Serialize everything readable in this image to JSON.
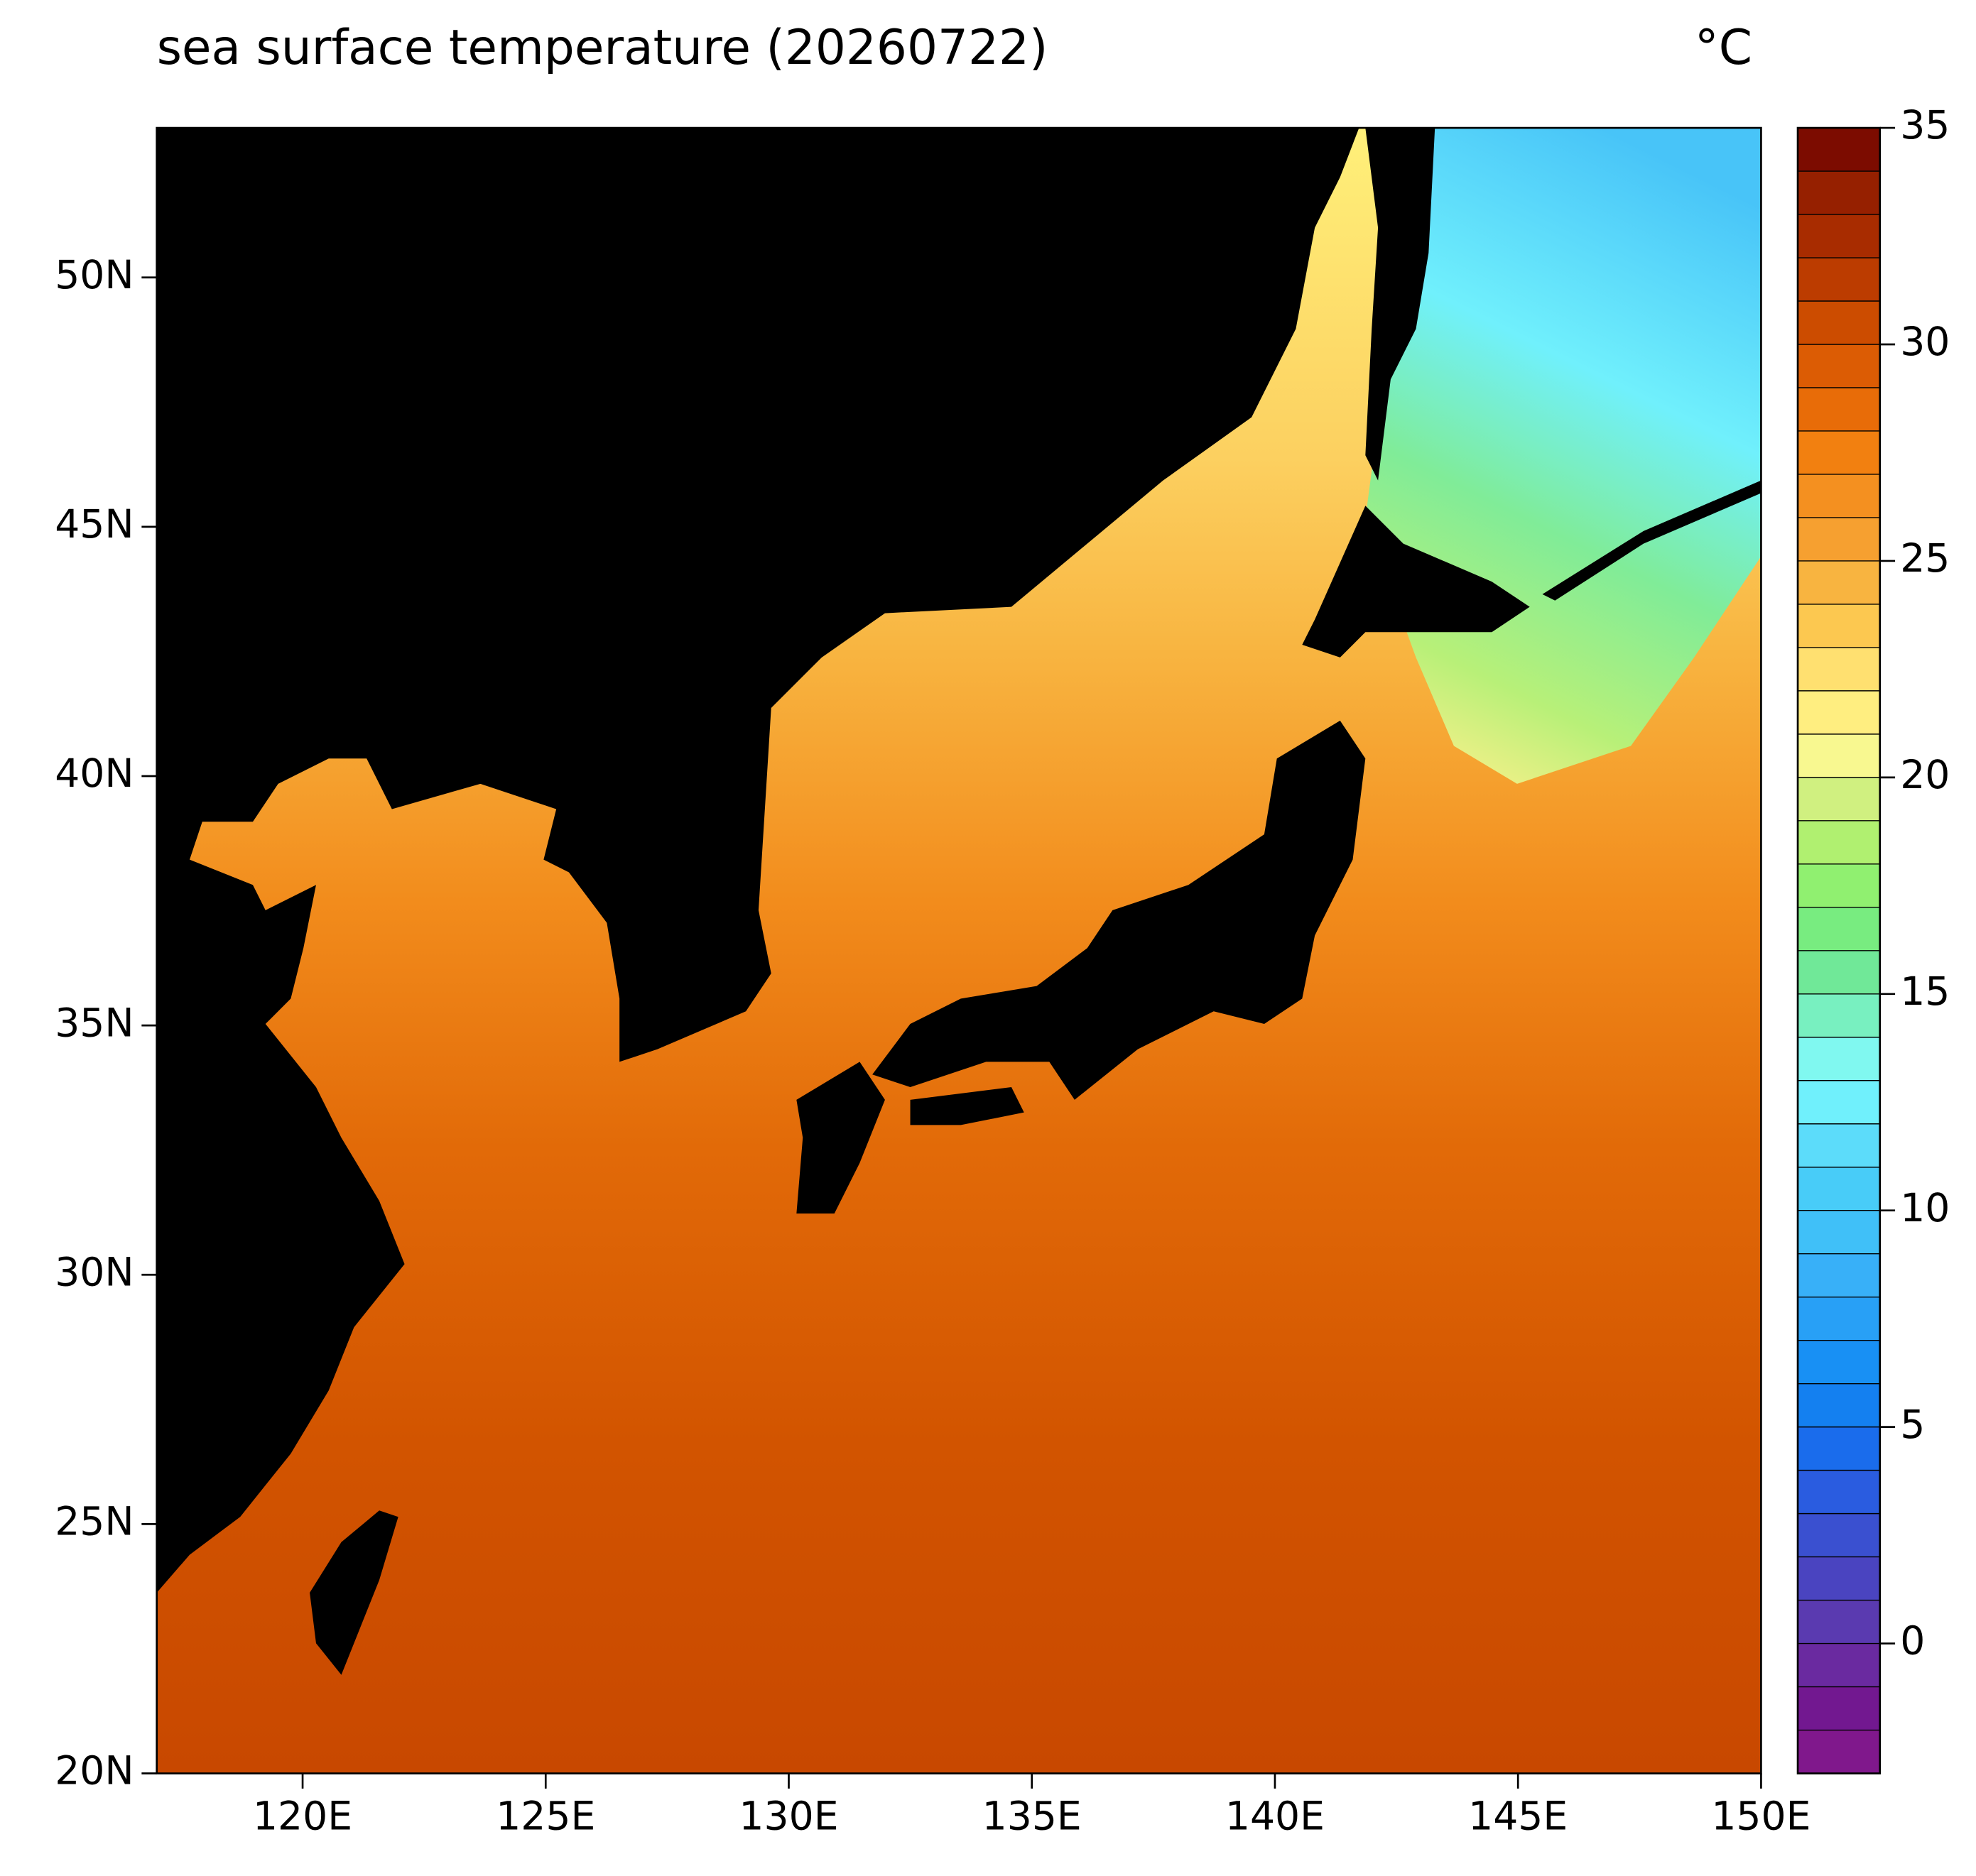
{
  "chart_data": {
    "type": "map",
    "title": "sea surface temperature (20260722)",
    "units": "°C",
    "xlim": [
      117,
      150
    ],
    "ylim": [
      20,
      53
    ],
    "xticks": [
      {
        "value": 120,
        "label": "120E"
      },
      {
        "value": 125,
        "label": "125E"
      },
      {
        "value": 130,
        "label": "130E"
      },
      {
        "value": 135,
        "label": "135E"
      },
      {
        "value": 140,
        "label": "140E"
      },
      {
        "value": 145,
        "label": "145E"
      },
      {
        "value": 150,
        "label": "150E"
      }
    ],
    "yticks": [
      {
        "value": 20,
        "label": "20N"
      },
      {
        "value": 25,
        "label": "25N"
      },
      {
        "value": 30,
        "label": "30N"
      },
      {
        "value": 35,
        "label": "35N"
      },
      {
        "value": 40,
        "label": "40N"
      },
      {
        "value": 45,
        "label": "45N"
      },
      {
        "value": 50,
        "label": "50N"
      }
    ],
    "colorbar": {
      "lim": [
        -3,
        35
      ],
      "ticks": [
        0,
        5,
        10,
        15,
        20,
        25,
        30,
        35
      ],
      "levels": [
        -3,
        -2,
        -1,
        0,
        1,
        2,
        3,
        4,
        5,
        6,
        7,
        8,
        9,
        10,
        11,
        12,
        13,
        14,
        15,
        16,
        17,
        18,
        19,
        20,
        21,
        22,
        23,
        24,
        25,
        26,
        27,
        28,
        29,
        30,
        31,
        32,
        33,
        34,
        35
      ],
      "colors": [
        "#80188c",
        "#721890",
        "#6a2aa0",
        "#5a3ab0",
        "#4a44c0",
        "#3a50d0",
        "#2a5ce0",
        "#1a6cec",
        "#1480f0",
        "#1890f4",
        "#28a0f6",
        "#38b0f8",
        "#40c0f8",
        "#48ccf8",
        "#5cdcfa",
        "#70f0fc",
        "#80f8f0",
        "#78f0c0",
        "#70e898",
        "#78ec80",
        "#90f070",
        "#b0f070",
        "#d0f080",
        "#f8f890",
        "#ffee80",
        "#ffe070",
        "#fcc850",
        "#f8b440",
        "#f6a030",
        "#f49020",
        "#f28010",
        "#e86c08",
        "#dc5c04",
        "#cc4c00",
        "#bc3c00",
        "#a82c00",
        "#962000",
        "#7c0c00"
      ]
    }
  }
}
